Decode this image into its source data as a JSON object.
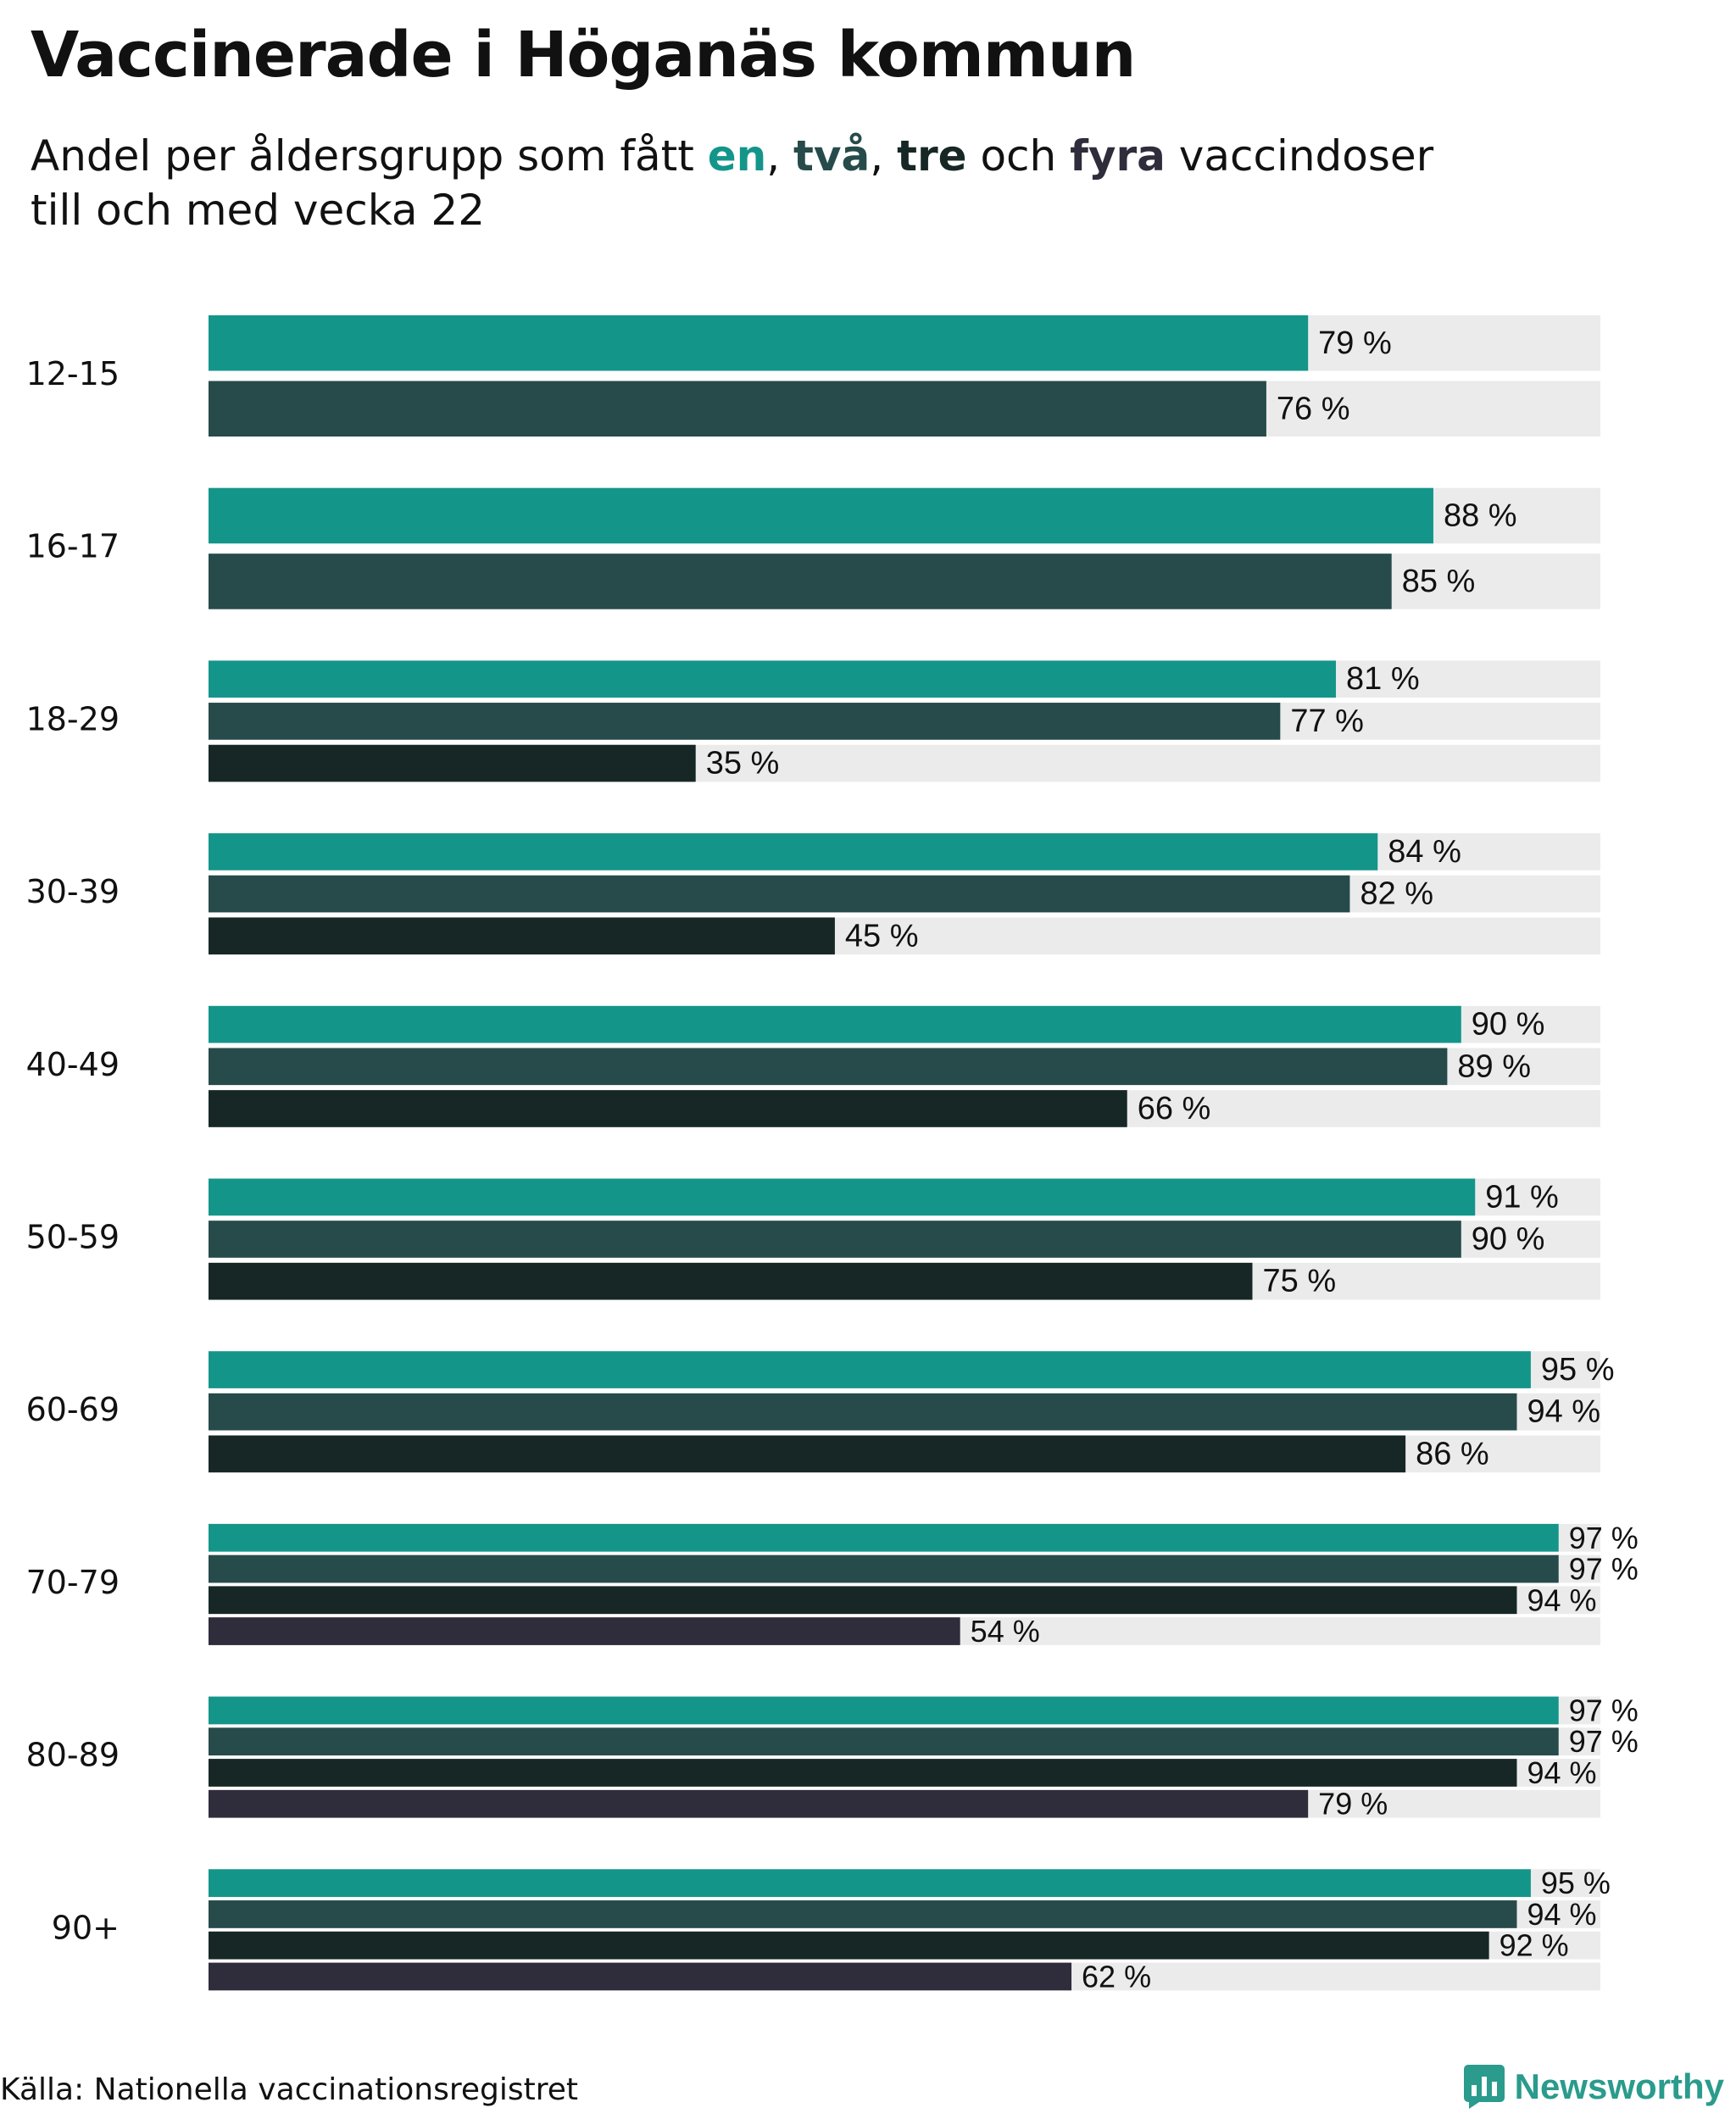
{
  "title": "Vaccinerade i Höganäs kommun",
  "subtitle": {
    "prefix": "Andel per åldersgrupp som fått ",
    "w1": "en",
    "sep1": ", ",
    "w2": "två",
    "sep2": ", ",
    "w3": "tre",
    "sep3": " och ",
    "w4": "fyra",
    "suffix": " vaccindoser",
    "line2": "till och med vecka 22"
  },
  "source": "Källa: Nationella vaccinationsregistret",
  "brand": {
    "name": "Newsworthy",
    "icon": "bar-chart-logo-icon",
    "color": "#2a9b8c"
  },
  "colors": {
    "dose1": "#14958a",
    "dose2": "#264b4a",
    "dose3": "#172726",
    "dose4": "#2f2c3b",
    "track": "#ebebeb"
  },
  "chart_data": {
    "type": "bar",
    "orientation": "horizontal",
    "unit": "%",
    "xlim": [
      0,
      100
    ],
    "categories": [
      "12-15",
      "16-17",
      "18-29",
      "30-39",
      "40-49",
      "50-59",
      "60-69",
      "70-79",
      "80-89",
      "90+"
    ],
    "series": [
      {
        "name": "en",
        "values": [
          79,
          88,
          81,
          84,
          90,
          91,
          95,
          97,
          97,
          95
        ]
      },
      {
        "name": "två",
        "values": [
          76,
          85,
          77,
          82,
          89,
          90,
          94,
          97,
          97,
          94
        ]
      },
      {
        "name": "tre",
        "values": [
          null,
          null,
          35,
          45,
          66,
          75,
          86,
          94,
          94,
          92
        ]
      },
      {
        "name": "fyra",
        "values": [
          null,
          null,
          null,
          null,
          null,
          null,
          null,
          54,
          79,
          62
        ]
      }
    ],
    "grid": false,
    "legend": "in subtitle"
  }
}
